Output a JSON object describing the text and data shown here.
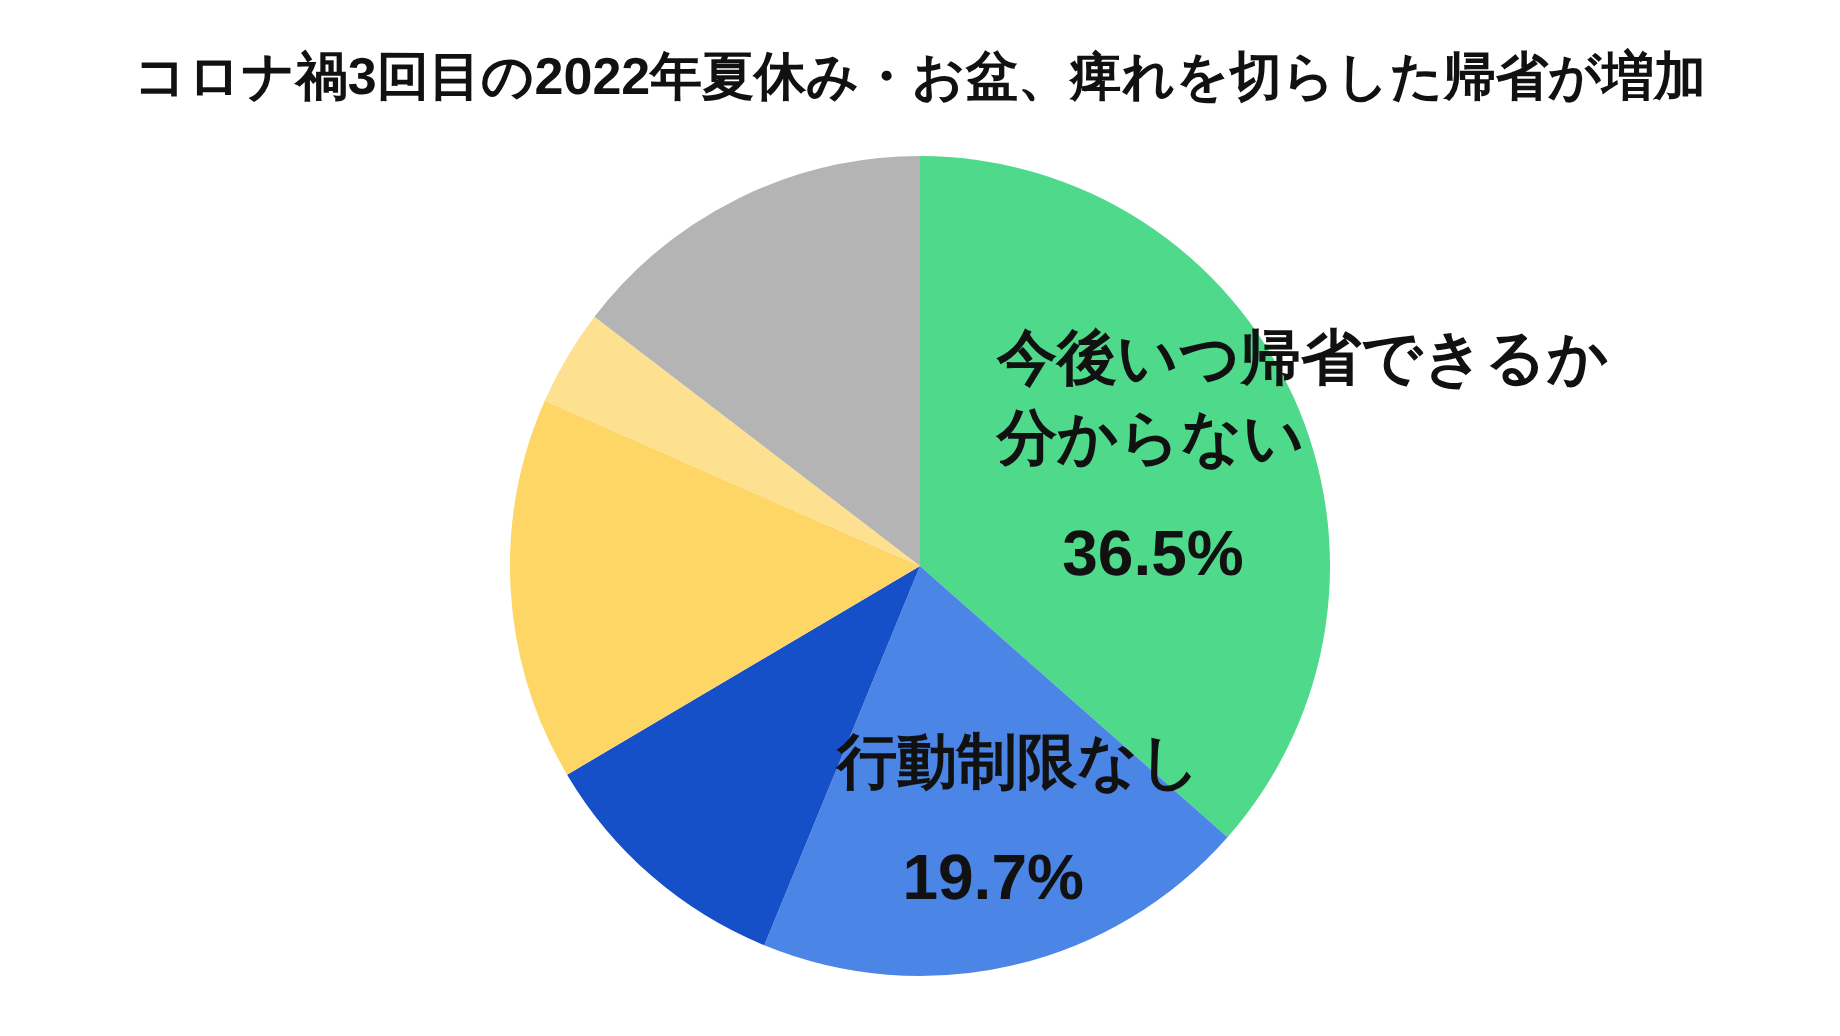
{
  "chart_data": {
    "type": "pie",
    "title": "コロナ禍3回目の2022年夏休み・お盆、痺れを切らした帰省が増加",
    "categories": [
      "今後いつ帰省できるか分からない",
      "行動制限なし",
      null,
      null,
      null,
      null
    ],
    "values": [
      36.5,
      19.7,
      10.3,
      15.1,
      3.8,
      14.6
    ],
    "colors": [
      "#4fd98b",
      "#4b86e6",
      "#1650c8",
      "#fdd666",
      "#fde090",
      "#b4b4b4"
    ],
    "value_labels": [
      "36.5%",
      "19.7%",
      null,
      null,
      null,
      null
    ],
    "legend": false
  }
}
